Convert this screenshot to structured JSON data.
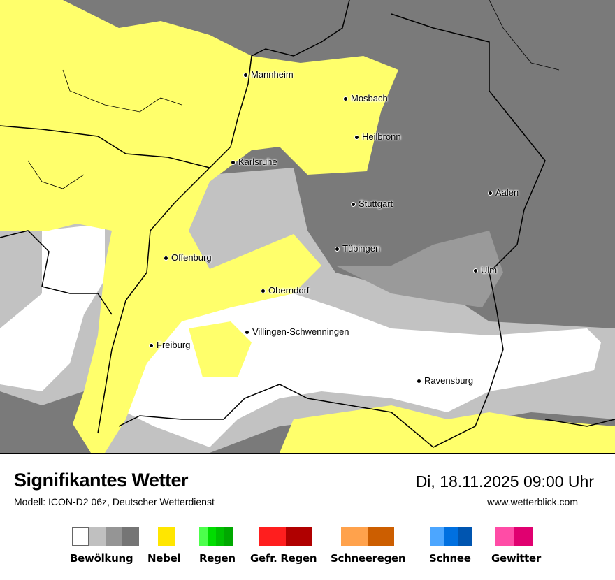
{
  "map": {
    "colors": {
      "overcast": "#7a7a7a",
      "cloudy": "#9a9a9a",
      "partly": "#c2c2c2",
      "clear": "#ffffff",
      "fog": "#ffff6b"
    },
    "cities": [
      "Mannheim",
      "Mosbach",
      "Heilbronn",
      "Karlsruhe",
      "Aalen",
      "Stuttgart",
      "Tübingen",
      "Offenburg",
      "Ulm",
      "Oberndorf",
      "Villingen-Schwenningen",
      "Freiburg",
      "Ravensburg"
    ]
  },
  "header": {
    "title": "Signifikantes Wetter",
    "subtitle": "Modell: ICON-D2 06z, Deutscher Wetterdienst",
    "datetime": "Di, 18.11.2025 09:00 Uhr",
    "website": "www.wetterblick.com"
  },
  "legend": [
    {
      "label": "Bewölkung",
      "colors": [
        "#ffffff",
        "#c0c0c0",
        "#959595",
        "#757575"
      ]
    },
    {
      "label": "Nebel",
      "colors": [
        "#ffe600"
      ]
    },
    {
      "label": "Regen",
      "colors": [
        "#4cff4c",
        "#00dd00",
        "#00c000",
        "#00a800"
      ]
    },
    {
      "label": "Gefr. Regen",
      "colors": [
        "#ff1e1e",
        "#b00000"
      ]
    },
    {
      "label": "Schneeregen",
      "colors": [
        "#ffa24c",
        "#cc5e00"
      ]
    },
    {
      "label": "Schnee",
      "colors": [
        "#4ca6ff",
        "#0070e0",
        "#0055b0"
      ]
    },
    {
      "label": "Gewitter",
      "colors": [
        "#ff4ca6",
        "#e00070"
      ]
    }
  ]
}
